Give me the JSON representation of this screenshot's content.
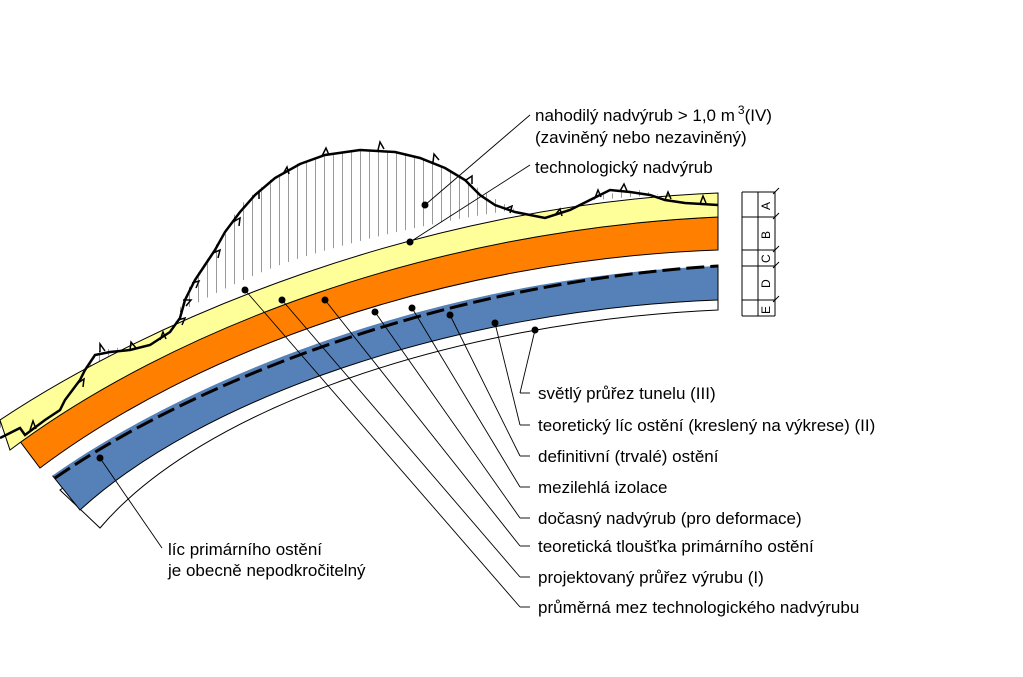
{
  "top_labels": {
    "random_overbreak_line1": "nahodilý nadvýrub > 1,0 m",
    "random_overbreak_sup": "3",
    "random_overbreak_suffix": "(IV)",
    "random_overbreak_line2": "(zaviněný nebo nezaviněný)",
    "technological_overbreak": "technologický nadvýrub"
  },
  "layer_legend": [
    "A",
    "B",
    "C",
    "D",
    "E"
  ],
  "right_labels": [
    "světlý průřez tunelu (III)",
    "teoretický líc ostění (kreslený na výkrese) (II)",
    "definitivní (trvalé) ostění",
    "mezilehlá izolace",
    "dočasný nadvýrub (pro deformace)",
    "teoretická tloušťka primárního ostění",
    "projektovaný průřez výrubu (I)",
    "průměrná mez technologického nadvýrubu"
  ],
  "bottom_left_label": {
    "line1": "líc primárního ostění",
    "line2": "je obecně nepodkročitelný"
  },
  "colors": {
    "yellow_band": "#ffff99",
    "orange_band": "#ff8000",
    "blue_band": "#5580b8",
    "hatch": "#000000"
  }
}
